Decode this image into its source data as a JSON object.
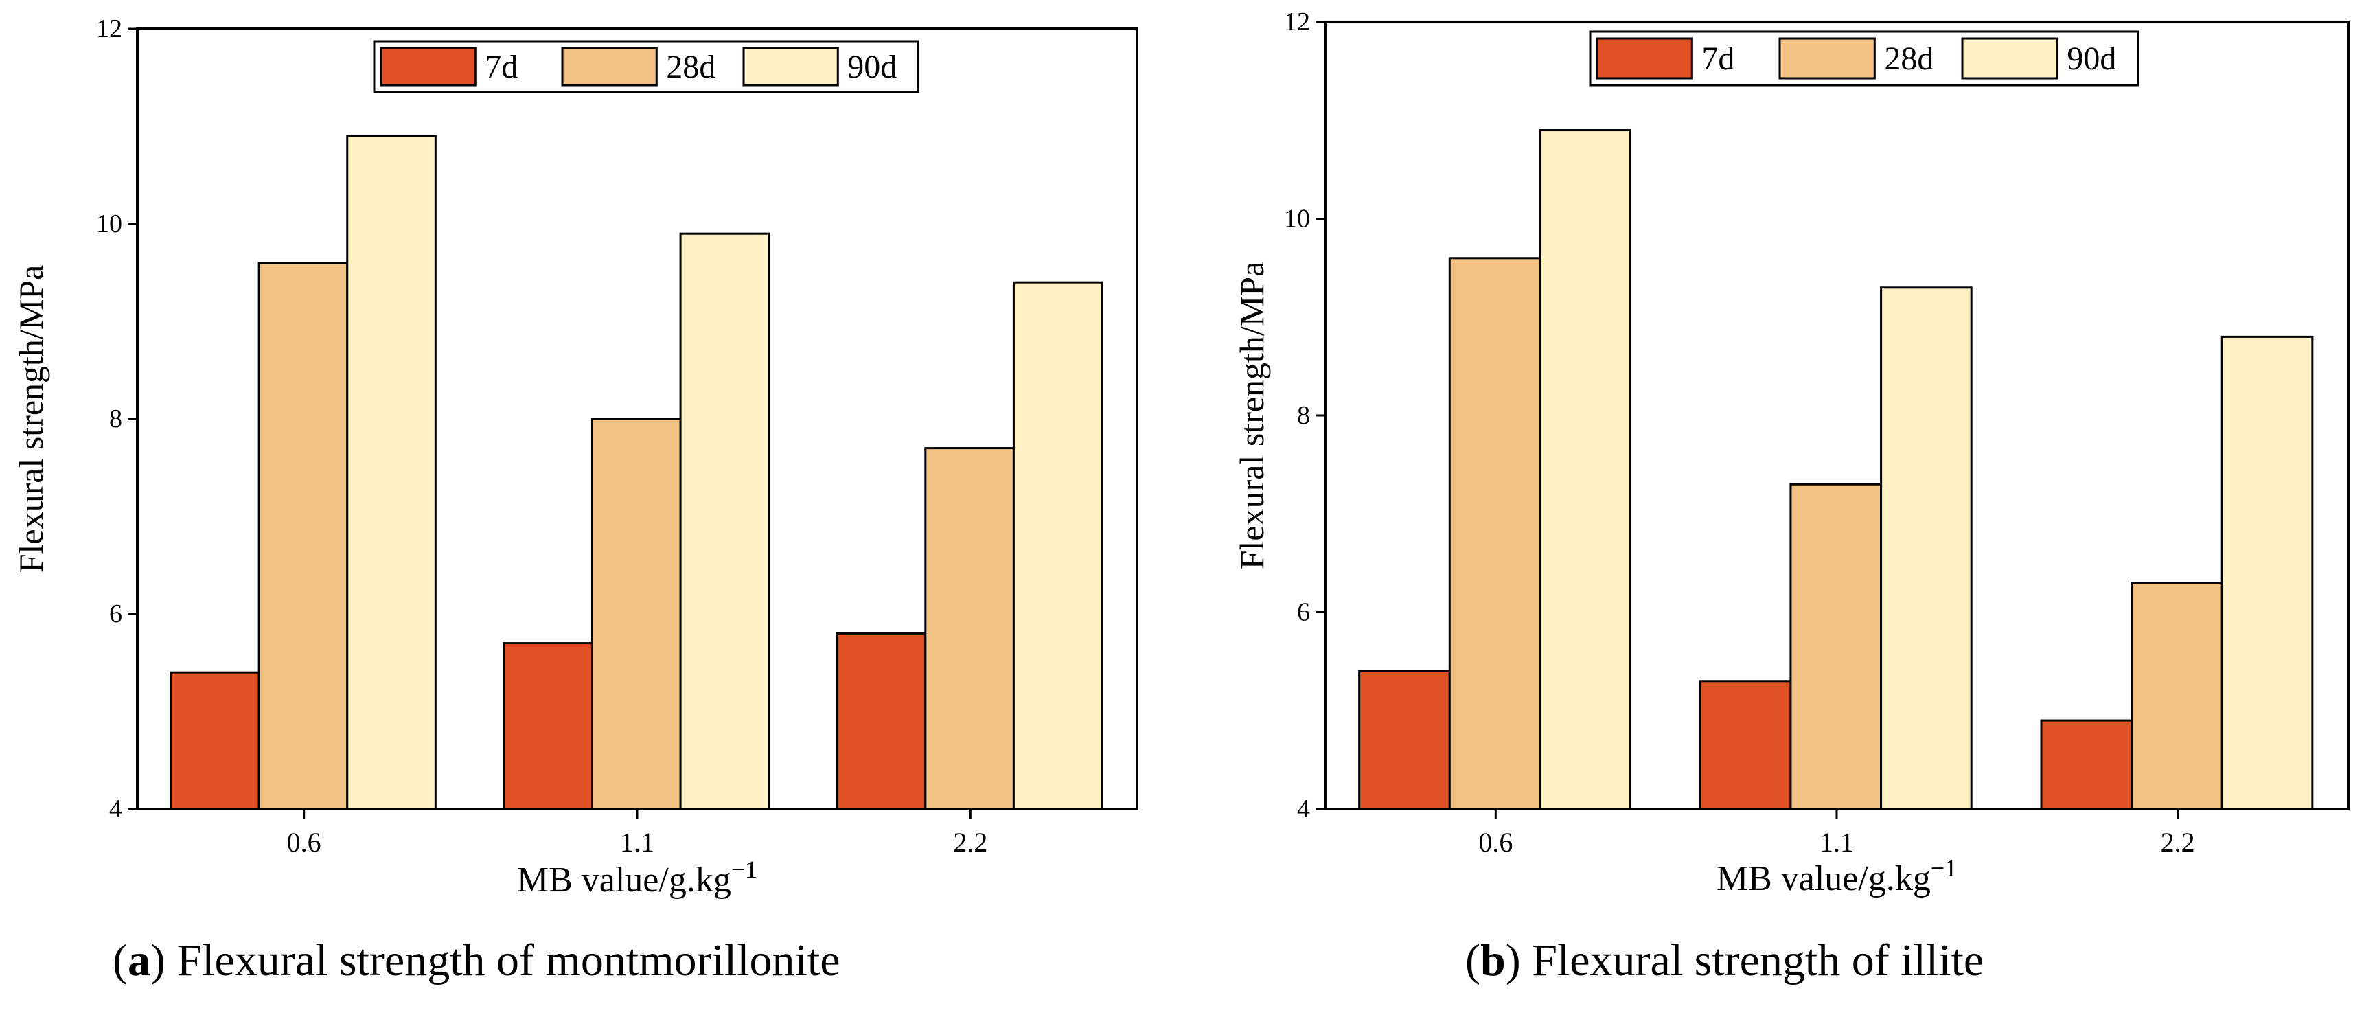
{
  "chart_data": [
    {
      "type": "bar",
      "categories": [
        "0.6",
        "1.1",
        "2.2"
      ],
      "series": [
        {
          "name": "7d",
          "values": [
            5.4,
            5.7,
            5.8
          ]
        },
        {
          "name": "28d",
          "values": [
            9.6,
            8.0,
            7.7
          ]
        },
        {
          "name": "90d",
          "values": [
            10.9,
            9.9,
            9.4
          ]
        }
      ],
      "ylim": [
        4,
        12
      ],
      "yticks": [
        "4",
        "6",
        "8",
        "10",
        "12"
      ],
      "xlabel_text": "MB value/g.kg",
      "xlabel_sup": "−1",
      "ylabel": "Flexural strength/MPa",
      "legend_position": "top-center",
      "caption_letter": "a",
      "caption_text": " Flexural strength of montmorillonite",
      "grid": false
    },
    {
      "type": "bar",
      "categories": [
        "0.6",
        "1.1",
        "2.2"
      ],
      "series": [
        {
          "name": "7d",
          "values": [
            5.4,
            5.3,
            4.9
          ]
        },
        {
          "name": "28d",
          "values": [
            9.6,
            7.3,
            6.3
          ]
        },
        {
          "name": "90d",
          "values": [
            10.9,
            9.3,
            8.8
          ]
        }
      ],
      "ylim": [
        4,
        12
      ],
      "yticks": [
        "4",
        "6",
        "8",
        "10",
        "12"
      ],
      "xlabel_text": "MB value/g.kg",
      "xlabel_sup": "−1",
      "ylabel": "Flexural strength/MPa",
      "legend_position": "top-center",
      "caption_letter": "b",
      "caption_text": " Flexural strength of illite",
      "grid": false
    }
  ],
  "colors": {
    "7d": "#E05226",
    "28d": "#F2C184",
    "90d": "#FFF1C4",
    "axis": "#000000",
    "text": "#000000"
  }
}
